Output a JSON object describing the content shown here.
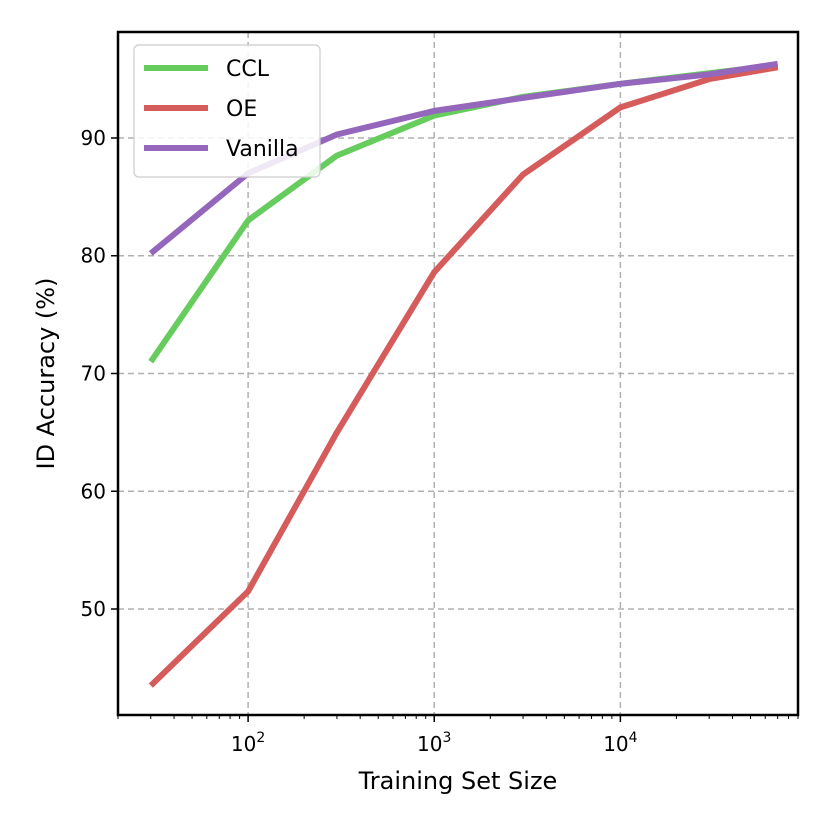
{
  "chart_data": {
    "type": "line",
    "title": "",
    "xlabel": "Training Set Size",
    "ylabel": "ID Accuracy (%)",
    "xscale": "log",
    "xlim": [
      20,
      90000
    ],
    "ylim": [
      41,
      99
    ],
    "grid": true,
    "legend_position": "top-left",
    "x_ticks": [
      {
        "value": 100,
        "base": "10",
        "exp": "2"
      },
      {
        "value": 1000,
        "base": "10",
        "exp": "3"
      },
      {
        "value": 10000,
        "base": "10",
        "exp": "4"
      }
    ],
    "y_ticks": [
      50,
      60,
      70,
      80,
      90
    ],
    "x": [
      30,
      100,
      300,
      1000,
      3000,
      10000,
      30000,
      70000
    ],
    "series": [
      {
        "name": "CCL",
        "color": "#66cc5e",
        "values": [
          71.0,
          83.0,
          88.5,
          91.9,
          93.5,
          94.6,
          95.5,
          96.2
        ]
      },
      {
        "name": "OE",
        "color": "#d65c5c",
        "values": [
          43.5,
          51.5,
          65.0,
          78.6,
          86.9,
          92.6,
          95.0,
          96.0
        ]
      },
      {
        "name": "Vanilla",
        "color": "#9467bd",
        "values": [
          80.2,
          87.0,
          90.3,
          92.3,
          93.4,
          94.6,
          95.4,
          96.3
        ]
      }
    ]
  }
}
